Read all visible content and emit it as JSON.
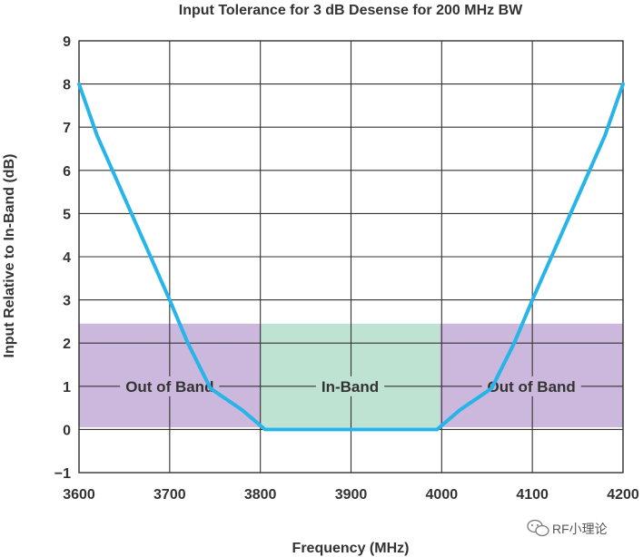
{
  "chart_data": {
    "type": "line",
    "title": "Input Tolerance for 3 dB Desense for 200 MHz BW",
    "xlabel": "Frequency (MHz)",
    "ylabel": "Input Relative to In-Band (dB)",
    "xlim": [
      3600,
      4200
    ],
    "ylim": [
      -1,
      9
    ],
    "x_ticks": [
      3600,
      3700,
      3800,
      3900,
      4000,
      4100,
      4200
    ],
    "y_ticks": [
      -1,
      0,
      1,
      2,
      3,
      4,
      5,
      6,
      7,
      8,
      9
    ],
    "x_tick_labels": [
      "3600",
      "3700",
      "3800",
      "3900",
      "4000",
      "4100",
      "4200"
    ],
    "y_tick_labels": [
      "−1",
      "0",
      "1",
      "2",
      "3",
      "4",
      "5",
      "6",
      "7",
      "8",
      "9"
    ],
    "grid": true,
    "series": [
      {
        "color": "#27b4e8",
        "x": [
          3600,
          3620,
          3660,
          3700,
          3720,
          3745,
          3780,
          3805,
          3900,
          3995,
          4020,
          4055,
          4080,
          4100,
          4140,
          4180,
          4200
        ],
        "y": [
          8.0,
          6.8,
          4.9,
          3.0,
          2.0,
          0.95,
          0.45,
          0.0,
          0.0,
          0.0,
          0.45,
          0.95,
          2.0,
          3.0,
          4.9,
          6.8,
          8.0
        ]
      }
    ],
    "regions": [
      {
        "label": "Out of Band",
        "x": [
          3600,
          3800
        ],
        "y": [
          0.05,
          2.45
        ],
        "color": "#cbb8dc"
      },
      {
        "label": "In-Band",
        "x": [
          3800,
          3998
        ],
        "y": [
          0.05,
          2.45
        ],
        "color": "#bfe3d3"
      },
      {
        "label": "Out of Band",
        "x": [
          3998,
          4200
        ],
        "y": [
          0.05,
          2.45
        ],
        "color": "#cbb8dc"
      }
    ],
    "region_label_y": 1.0
  },
  "watermark": {
    "text": "RF小理论"
  },
  "colors": {
    "grid": "#333333",
    "text": "#333333",
    "curve": "#27b4e8"
  }
}
